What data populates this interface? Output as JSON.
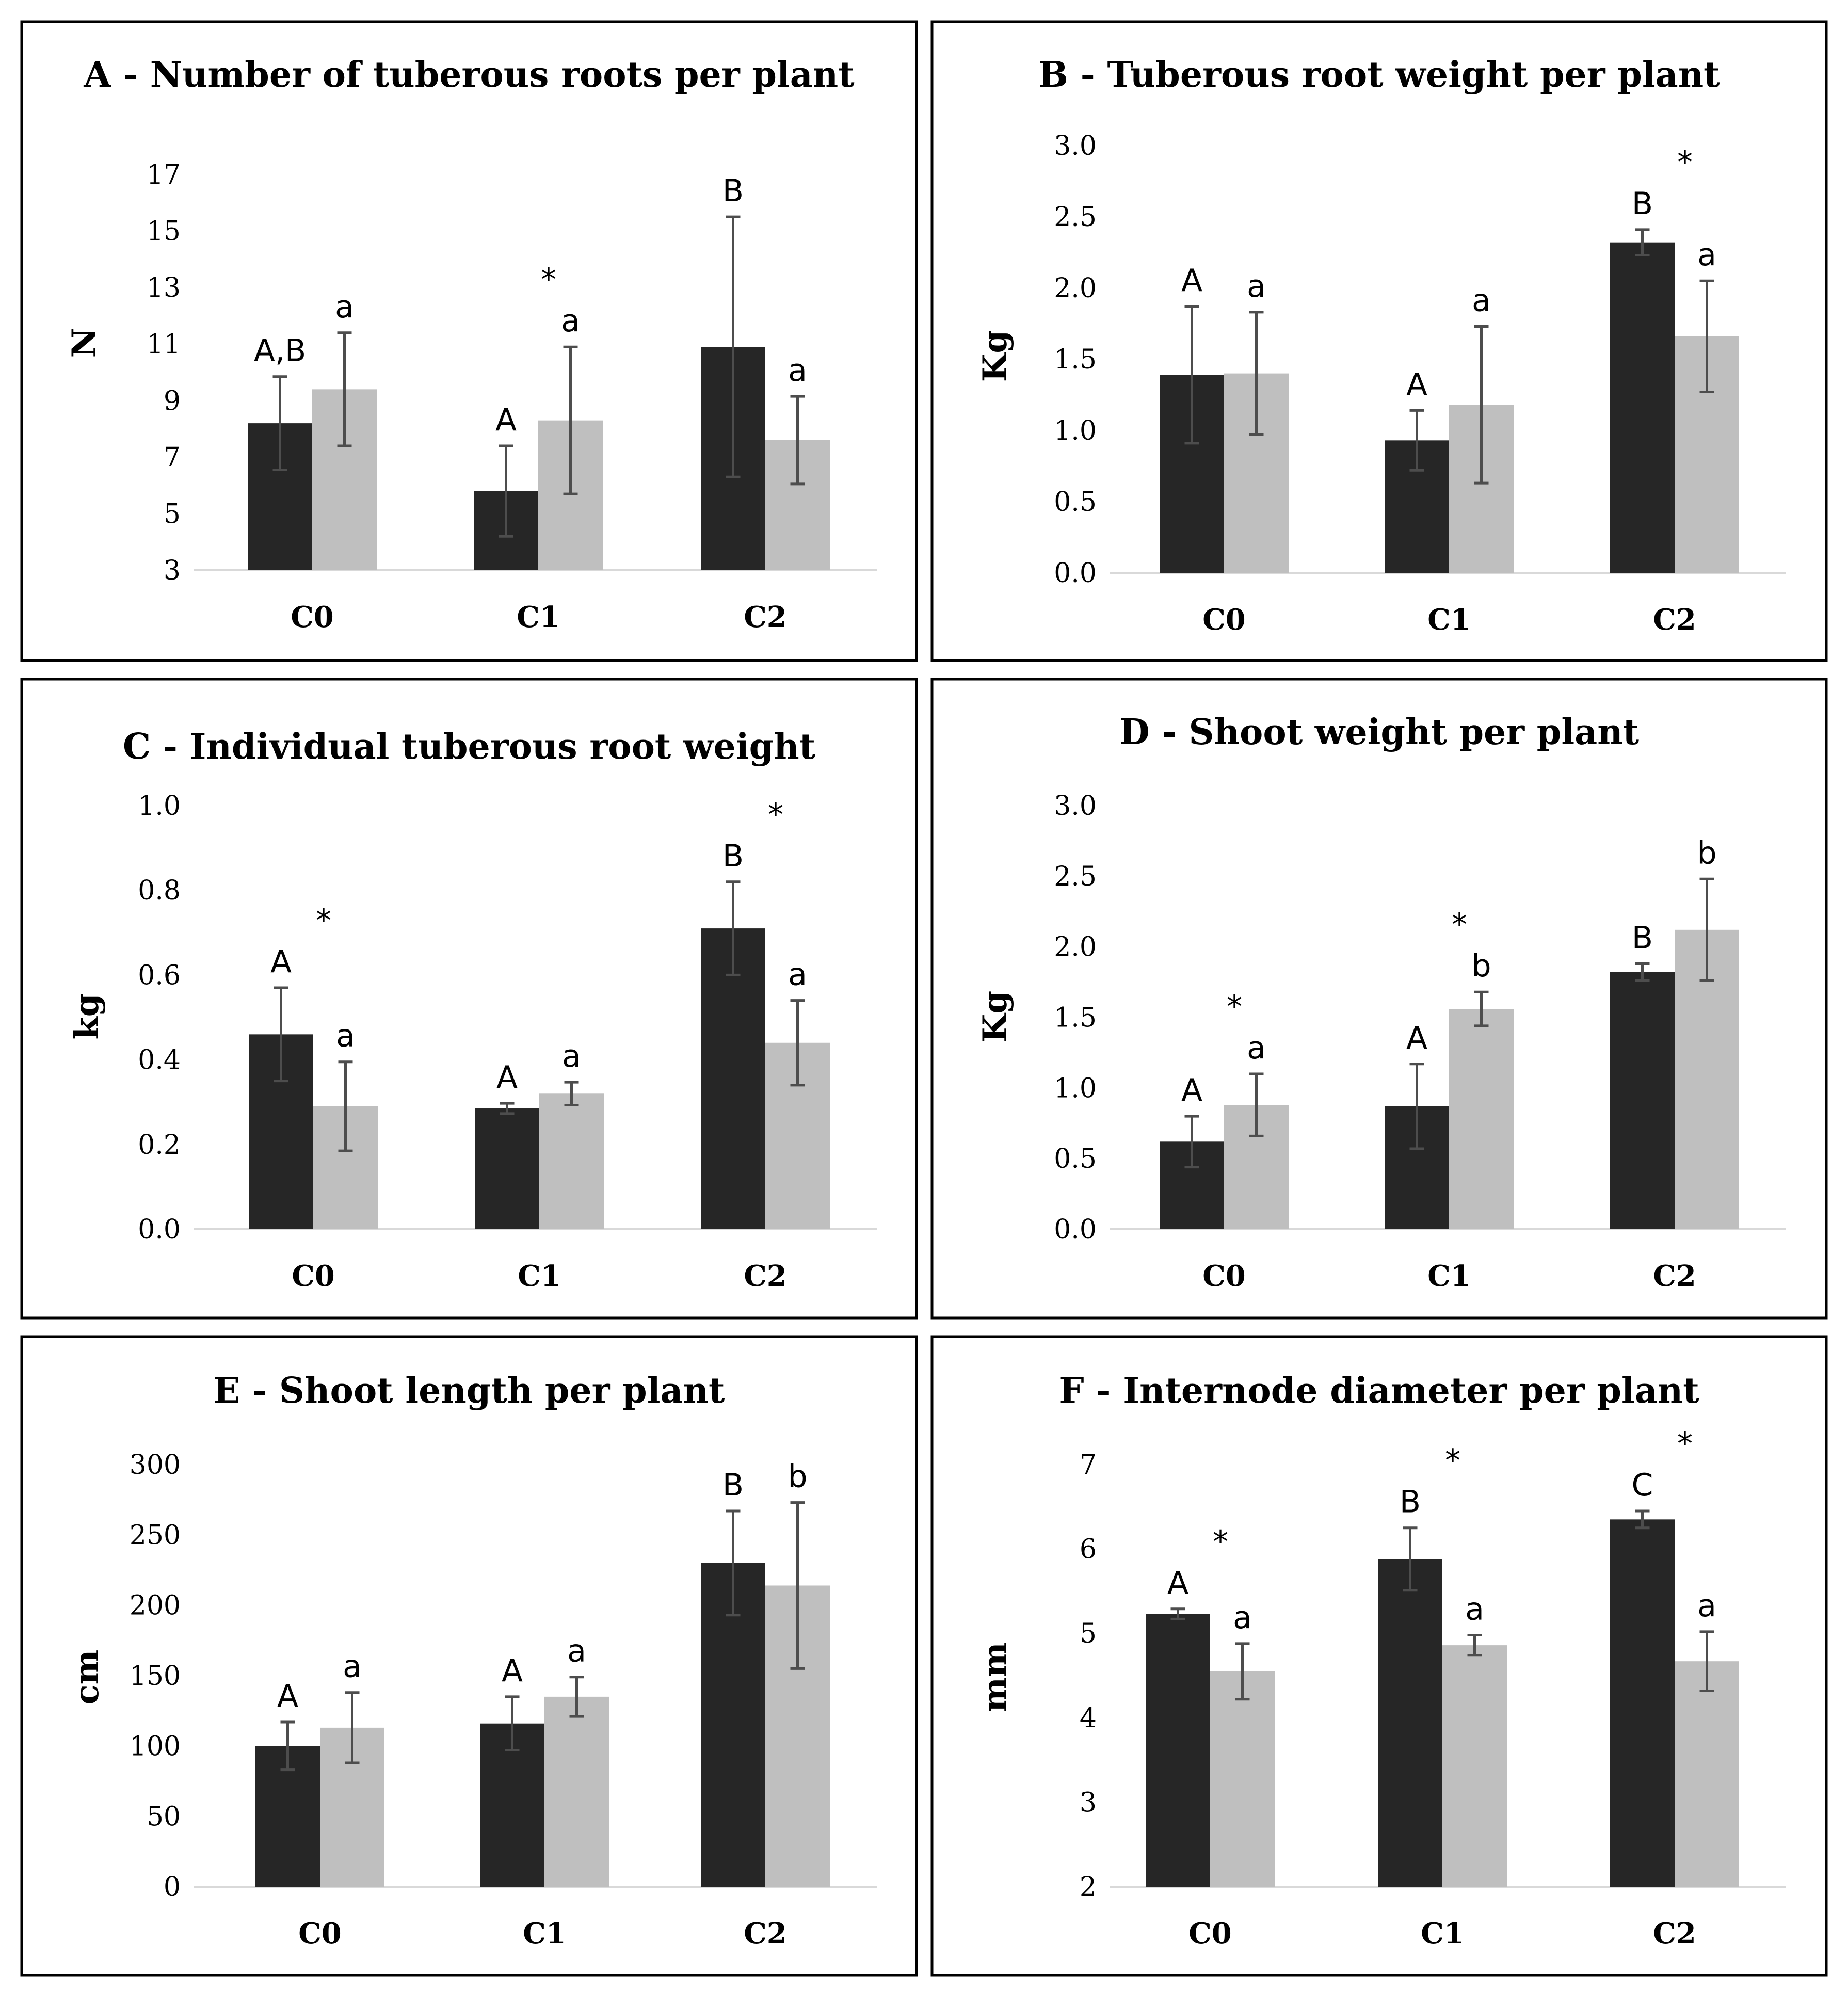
{
  "colors": {
    "dark_series": "#262626",
    "light_series": "#bfbfbf",
    "error_bar": "#4d4d4d",
    "axis": "#d9d9d9",
    "frame": "#000000"
  },
  "chart_data": [
    {
      "type": "bar",
      "title": "A - Number of tuberous roots per plant",
      "ylabel": "N",
      "categories": [
        "C0",
        "C1",
        "C2"
      ],
      "ylim": [
        3,
        17
      ],
      "yticks": [
        "3",
        "5",
        "7",
        "9",
        "11",
        "13",
        "15",
        "17"
      ],
      "series": [
        {
          "values": [
            8.2,
            5.8,
            10.9
          ],
          "errors": [
            1.65,
            1.6,
            4.6
          ]
        },
        {
          "values": [
            9.4,
            8.3,
            7.6
          ],
          "errors": [
            2.0,
            2.6,
            1.55
          ]
        }
      ],
      "letters_upper": [
        "A,B",
        "A",
        "B"
      ],
      "letters_lower": [
        "a",
        "a",
        "a"
      ],
      "stars": [
        "",
        "*",
        ""
      ]
    },
    {
      "type": "bar",
      "title": "B - Tuberous root weight per plant",
      "ylabel": "Kg",
      "categories": [
        "C0",
        "C1",
        "C2"
      ],
      "ylim": [
        0,
        3
      ],
      "yticks": [
        "0.0",
        "0.5",
        "1.0",
        "1.5",
        "2.0",
        "2.5",
        "3.0"
      ],
      "series": [
        {
          "values": [
            1.39,
            0.93,
            2.32
          ],
          "errors": [
            0.48,
            0.21,
            0.09
          ]
        },
        {
          "values": [
            1.4,
            1.18,
            1.66
          ],
          "errors": [
            0.43,
            0.55,
            0.39
          ]
        }
      ],
      "letters_upper": [
        "A",
        "A",
        "B"
      ],
      "letters_lower": [
        "a",
        "a",
        "a"
      ],
      "stars": [
        "",
        "",
        "*"
      ]
    },
    {
      "type": "bar",
      "title": "C - Individual tuberous root weight",
      "ylabel": "kg",
      "categories": [
        "C0",
        "C1",
        "C2"
      ],
      "ylim": [
        0,
        1
      ],
      "yticks": [
        "0.0",
        "0.2",
        "0.4",
        "0.6",
        "0.8",
        "1.0"
      ],
      "series": [
        {
          "values": [
            0.46,
            0.285,
            0.71
          ],
          "errors": [
            0.11,
            0.012,
            0.11
          ]
        },
        {
          "values": [
            0.29,
            0.32,
            0.44
          ],
          "errors": [
            0.105,
            0.027,
            0.1
          ]
        }
      ],
      "letters_upper": [
        "A",
        "A",
        "B"
      ],
      "letters_lower": [
        "a",
        "a",
        "a"
      ],
      "stars": [
        "*",
        "",
        "*"
      ]
    },
    {
      "type": "bar",
      "title": "D - Shoot weight per plant",
      "ylabel": "Kg",
      "categories": [
        "C0",
        "C1",
        "C2"
      ],
      "ylim": [
        0,
        3
      ],
      "yticks": [
        "0.0",
        "0.5",
        "1.0",
        "1.5",
        "2.0",
        "2.5",
        "3.0"
      ],
      "series": [
        {
          "values": [
            0.62,
            0.87,
            1.82
          ],
          "errors": [
            0.18,
            0.3,
            0.06
          ]
        },
        {
          "values": [
            0.88,
            1.56,
            2.12
          ],
          "errors": [
            0.22,
            0.12,
            0.36
          ]
        }
      ],
      "letters_upper": [
        "A",
        "A",
        "B"
      ],
      "letters_lower": [
        "a",
        "b",
        "b"
      ],
      "stars": [
        "*",
        "*",
        ""
      ]
    },
    {
      "type": "bar",
      "title": "E - Shoot length per plant",
      "ylabel": "cm",
      "categories": [
        "C0",
        "C1",
        "C2"
      ],
      "ylim": [
        0,
        300
      ],
      "yticks": [
        "0",
        "50",
        "100",
        "150",
        "200",
        "250",
        "300"
      ],
      "series": [
        {
          "values": [
            100,
            116,
            230
          ],
          "errors": [
            17,
            19,
            37
          ]
        },
        {
          "values": [
            113,
            135,
            214
          ],
          "errors": [
            25,
            14,
            59
          ]
        }
      ],
      "letters_upper": [
        "A",
        "A",
        "B"
      ],
      "letters_lower": [
        "a",
        "a",
        "b"
      ],
      "stars": [
        "",
        "",
        ""
      ]
    },
    {
      "type": "bar",
      "title": "F - Internode diameter per plant",
      "ylabel": "mm",
      "categories": [
        "C0",
        "C1",
        "C2"
      ],
      "ylim": [
        2,
        7
      ],
      "yticks": [
        "2",
        "3",
        "4",
        "5",
        "6",
        "7"
      ],
      "series": [
        {
          "values": [
            5.23,
            5.88,
            6.35
          ],
          "errors": [
            0.06,
            0.37,
            0.1
          ]
        },
        {
          "values": [
            4.55,
            4.86,
            4.67
          ],
          "errors": [
            0.33,
            0.12,
            0.35
          ]
        }
      ],
      "letters_upper": [
        "A",
        "B",
        "C"
      ],
      "letters_lower": [
        "a",
        "a",
        "a"
      ],
      "stars": [
        "*",
        "*",
        "*"
      ]
    }
  ]
}
